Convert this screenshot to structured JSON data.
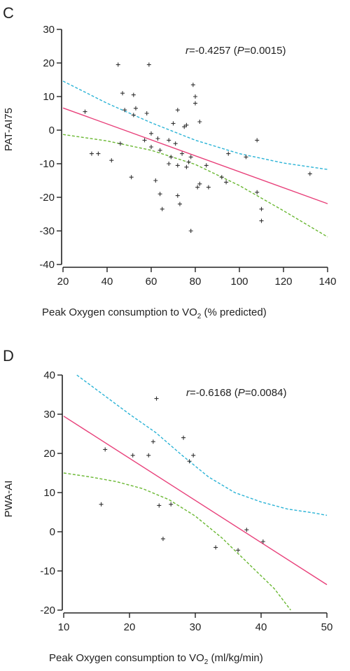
{
  "chart_data": [
    {
      "panel": "C",
      "type": "scatter",
      "xlabel": "Peak Oxygen consumption to VO",
      "xlabel_sub": "2",
      "xlabel_tail": " (% predicted)",
      "ylabel": "PAT-AI75",
      "annotation": {
        "r_sym": "r",
        "r_val": "=-0.4257 (",
        "p_sym": "P",
        "p_val": "=0.0015)"
      },
      "xlim": [
        20,
        140
      ],
      "ylim": [
        -40,
        30
      ],
      "xticks": [
        20,
        40,
        60,
        80,
        100,
        120,
        140
      ],
      "yticks": [
        -40,
        -30,
        -20,
        -10,
        0,
        10,
        20,
        30
      ],
      "points": [
        [
          30,
          5.5
        ],
        [
          33,
          -7
        ],
        [
          36,
          -7
        ],
        [
          42,
          -9
        ],
        [
          45,
          19.5
        ],
        [
          46,
          -4
        ],
        [
          47,
          11
        ],
        [
          48,
          6
        ],
        [
          51,
          -14
        ],
        [
          52,
          10.5
        ],
        [
          52,
          4.5
        ],
        [
          53,
          6.5
        ],
        [
          57,
          -3
        ],
        [
          58,
          5
        ],
        [
          59,
          19.5
        ],
        [
          60,
          -1
        ],
        [
          60,
          -5
        ],
        [
          62,
          -15
        ],
        [
          63,
          -2.5
        ],
        [
          64,
          -6
        ],
        [
          64,
          -19
        ],
        [
          65,
          -23.5
        ],
        [
          68,
          -10
        ],
        [
          68,
          -3
        ],
        [
          69,
          -8
        ],
        [
          70,
          2
        ],
        [
          71,
          -4
        ],
        [
          72,
          6
        ],
        [
          72,
          -10.5
        ],
        [
          72,
          -19.5
        ],
        [
          73,
          -22
        ],
        [
          74,
          -7
        ],
        [
          75,
          1
        ],
        [
          76,
          1.5
        ],
        [
          76,
          -11
        ],
        [
          77,
          -9.5
        ],
        [
          78,
          -30
        ],
        [
          78,
          -8
        ],
        [
          79,
          13.5
        ],
        [
          80,
          8
        ],
        [
          80,
          10
        ],
        [
          81,
          -17
        ],
        [
          82,
          2.5
        ],
        [
          82,
          -16
        ],
        [
          85,
          -10.5
        ],
        [
          86,
          -17
        ],
        [
          92,
          -14
        ],
        [
          94,
          -15.5
        ],
        [
          95,
          -7
        ],
        [
          103,
          -8
        ],
        [
          108,
          -18.5
        ],
        [
          108,
          -3
        ],
        [
          110,
          -27
        ],
        [
          110,
          -23.5
        ],
        [
          132,
          -13
        ]
      ],
      "regression": [
        [
          20,
          6.6
        ],
        [
          140,
          -21.9
        ]
      ],
      "upper_ci": [
        [
          20,
          14.6
        ],
        [
          40,
          8.0
        ],
        [
          60,
          2.2
        ],
        [
          80,
          -3.0
        ],
        [
          100,
          -7.0
        ],
        [
          120,
          -9.8
        ],
        [
          140,
          -11.7
        ]
      ],
      "lower_ci": [
        [
          20,
          -1.3
        ],
        [
          40,
          -3.2
        ],
        [
          60,
          -6.0
        ],
        [
          80,
          -10.2
        ],
        [
          100,
          -16.5
        ],
        [
          120,
          -24.0
        ],
        [
          140,
          -31.8
        ]
      ],
      "colors": {
        "regression": "#e8407a",
        "upper_ci": "#2ab3d6",
        "lower_ci": "#6ab832",
        "points": "#333333"
      }
    },
    {
      "panel": "D",
      "type": "scatter",
      "xlabel": "Peak Oxygen consumption to VO",
      "xlabel_sub": "2",
      "xlabel_tail": " (ml/kg/min)",
      "ylabel": "PWA-AI",
      "annotation": {
        "r_sym": "r",
        "r_val": "=-0.6168 (",
        "p_sym": "P",
        "p_val": "=0.0084)"
      },
      "xlim": [
        10,
        50
      ],
      "ylim": [
        -20,
        40
      ],
      "xticks": [
        10,
        20,
        30,
        40,
        50
      ],
      "yticks": [
        -20,
        -10,
        0,
        10,
        20,
        30,
        40
      ],
      "points": [
        [
          15.7,
          7
        ],
        [
          16.3,
          21
        ],
        [
          20.5,
          19.5
        ],
        [
          22.9,
          19.5
        ],
        [
          23.6,
          23
        ],
        [
          24.1,
          34
        ],
        [
          24.5,
          6.7
        ],
        [
          25.1,
          -1.8
        ],
        [
          26.3,
          7
        ],
        [
          28.2,
          24
        ],
        [
          29.1,
          18
        ],
        [
          29.7,
          19.5
        ],
        [
          33.1,
          -4
        ],
        [
          36.5,
          -4.7
        ],
        [
          37.8,
          0.5
        ],
        [
          40.3,
          -2.5
        ]
      ],
      "regression": [
        [
          10,
          29.5
        ],
        [
          50,
          -13.5
        ]
      ],
      "upper_ci": [
        [
          12,
          40
        ],
        [
          16,
          35
        ],
        [
          20,
          30
        ],
        [
          24,
          25.3
        ],
        [
          28,
          19.5
        ],
        [
          32,
          14
        ],
        [
          36,
          10
        ],
        [
          40,
          7.6
        ],
        [
          44,
          5.8
        ],
        [
          48,
          4.8
        ],
        [
          50,
          4.2
        ]
      ],
      "lower_ci": [
        [
          10,
          15
        ],
        [
          14,
          14
        ],
        [
          18,
          12.8
        ],
        [
          22,
          11
        ],
        [
          26,
          8.2
        ],
        [
          30,
          4
        ],
        [
          34,
          -1.5
        ],
        [
          38,
          -8
        ],
        [
          42,
          -14.5
        ],
        [
          44.5,
          -20
        ]
      ],
      "colors": {
        "regression": "#e8407a",
        "upper_ci": "#2ab3d6",
        "lower_ci": "#6ab832",
        "points": "#333333"
      }
    }
  ]
}
